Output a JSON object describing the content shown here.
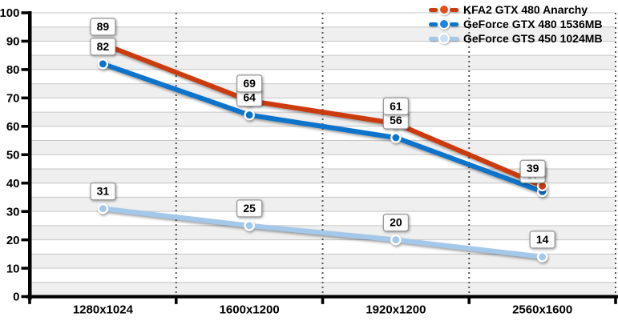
{
  "chart_data": {
    "type": "line",
    "title": "",
    "xlabel": "",
    "ylabel": "",
    "categories": [
      "1280x1024",
      "1600x1200",
      "1920x1200",
      "2560x1600"
    ],
    "series": [
      {
        "name": "KFA2 GTX 480 Anarchy",
        "color": "#cc3b0d",
        "dot_color": "#e0501a",
        "values": [
          89,
          69,
          61,
          39
        ]
      },
      {
        "name": "GeForce GTX 480 1536MB",
        "color": "#0d74cc",
        "dot_color": "#1e84dc",
        "values": [
          82,
          64,
          56,
          37
        ]
      },
      {
        "name": "GeForce GTS 450 1024MB",
        "color": "#a3c8ea",
        "dot_color": "#c8e0f6",
        "values": [
          31,
          25,
          20,
          14
        ]
      }
    ],
    "ylim": [
      0,
      100
    ],
    "yticks": [
      0,
      10,
      20,
      30,
      40,
      50,
      60,
      70,
      80,
      90,
      100
    ],
    "minor_grid_step": 5,
    "grid": true,
    "value_labels": true,
    "legend_position": "top-right"
  },
  "style": {
    "background": "#ffffff",
    "band_fill": "#efefef",
    "gridline": "#c6c6c6",
    "separator": "#555555",
    "axis": "#000000",
    "label_box_bg": "#fdfdfd",
    "label_box_border": "#999999",
    "text": "#000000"
  }
}
